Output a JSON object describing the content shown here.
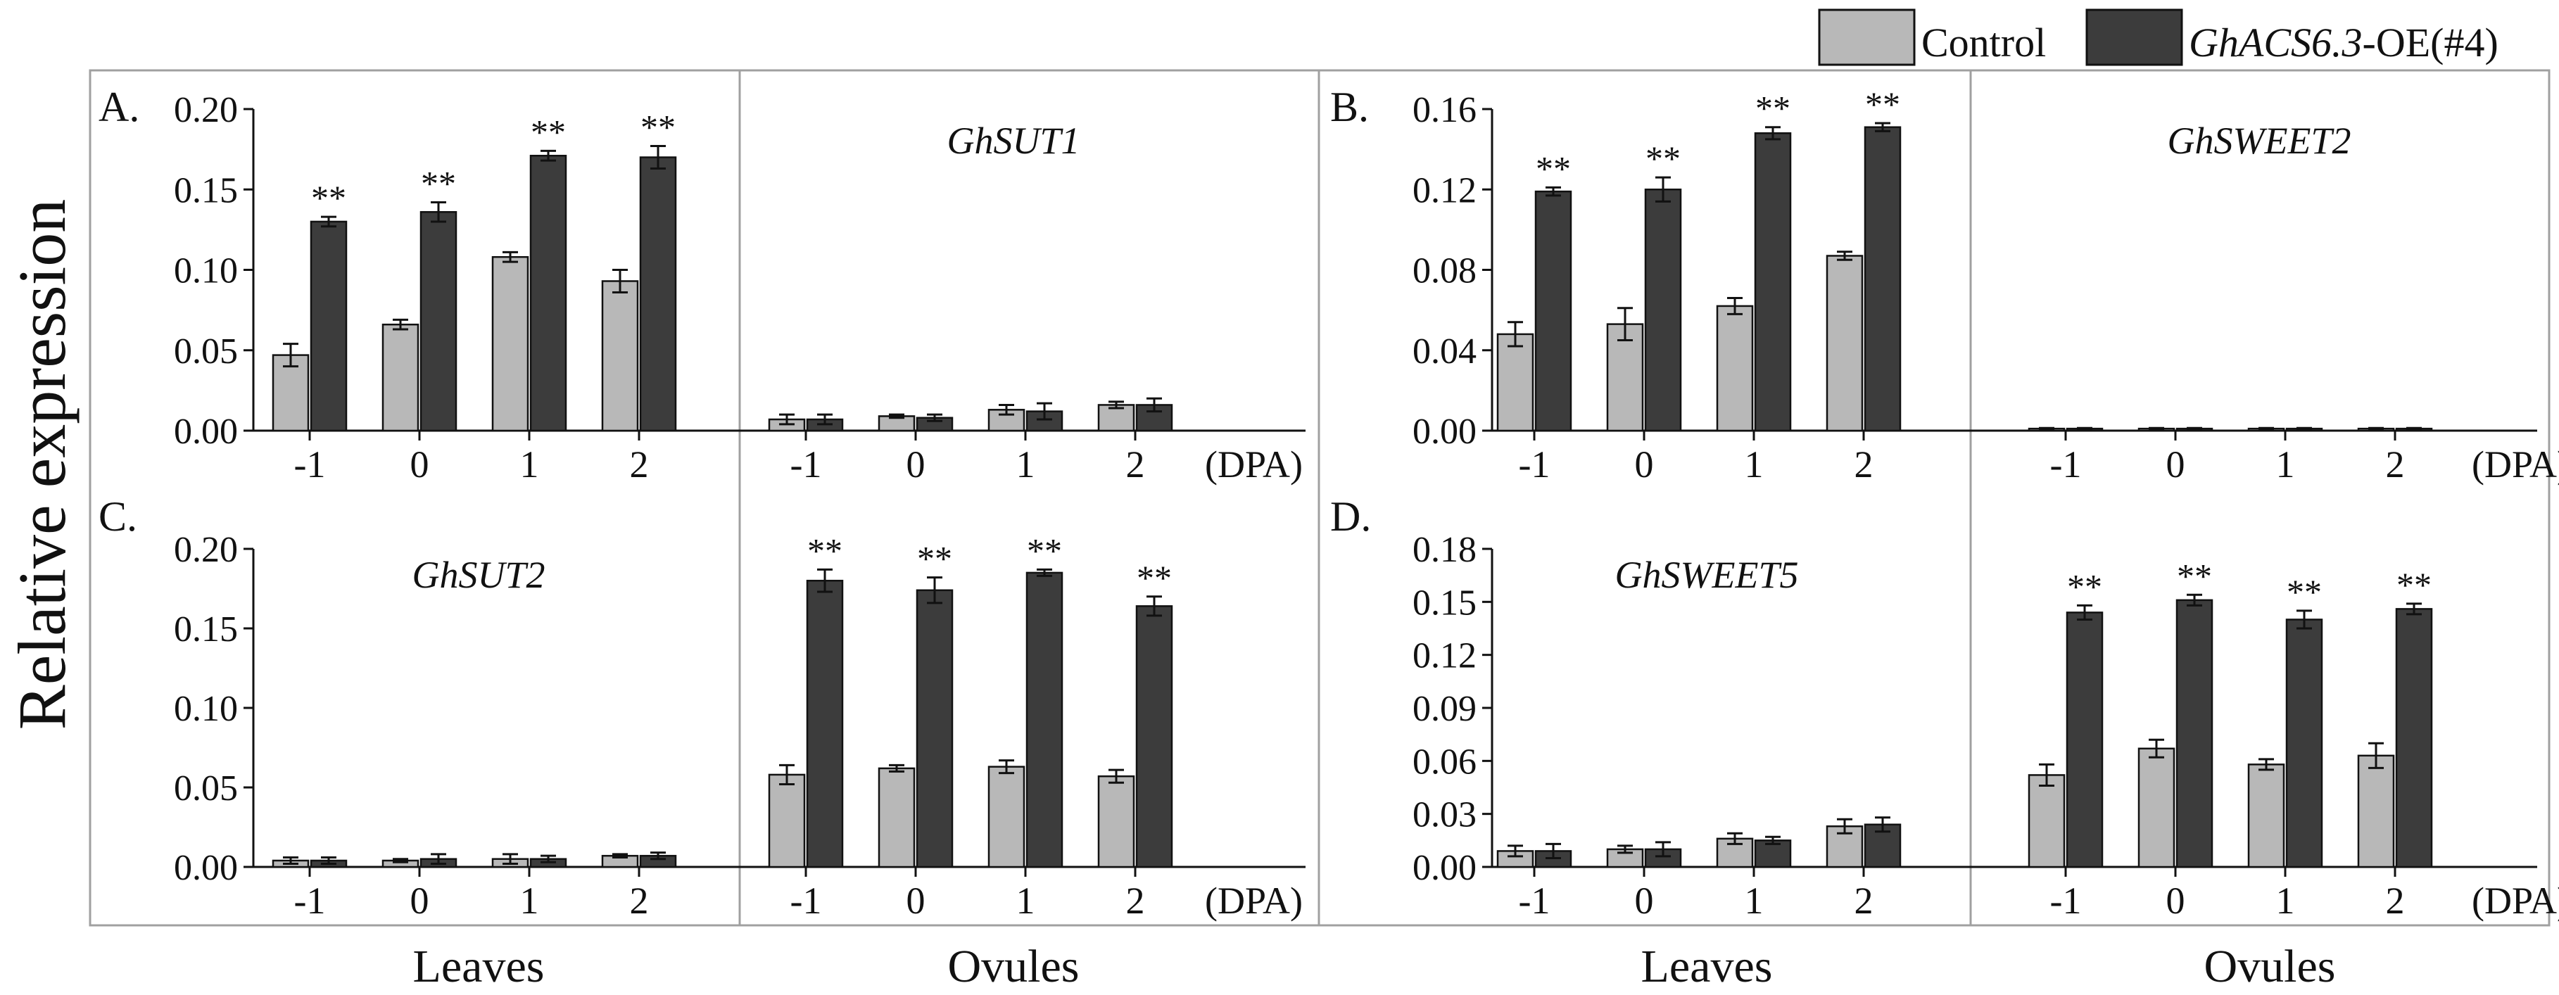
{
  "figure": {
    "ylabel": "Relative expression",
    "x_unit": "(DPA)",
    "tissue_labels": [
      "Leaves",
      "Ovules"
    ],
    "significance_marker": "**"
  },
  "legend": {
    "items": [
      {
        "label": "Control",
        "italic_part": "",
        "color": "#b8b8b8"
      },
      {
        "label": "-OE(#4)",
        "italic_part": "GhACS6.3",
        "color": "#3c3c3c"
      }
    ]
  },
  "colors": {
    "control": "#b8b8b8",
    "oe": "#3c3c3c",
    "axis": "#111111",
    "frame": "#a0a0a0"
  },
  "chart_data": [
    {
      "panel": "A.",
      "type": "bar",
      "gene_leaves": "",
      "gene_ovules": "GhSUT1",
      "categories": [
        "-1",
        "0",
        "1",
        "2"
      ],
      "ylim": [
        0,
        0.2
      ],
      "yticks": [
        "0.20",
        "0.15",
        "0.10",
        "0.05",
        "0.00"
      ],
      "ytick_values": [
        0.2,
        0.15,
        0.1,
        0.05,
        0.0
      ],
      "leaves": {
        "control": [
          0.047,
          0.066,
          0.108,
          0.093
        ],
        "control_err": [
          0.007,
          0.003,
          0.003,
          0.007
        ],
        "oe": [
          0.13,
          0.136,
          0.171,
          0.17
        ],
        "oe_err": [
          0.003,
          0.006,
          0.003,
          0.007
        ],
        "sig": [
          true,
          true,
          true,
          true
        ]
      },
      "ovules": {
        "control": [
          0.007,
          0.009,
          0.013,
          0.016
        ],
        "control_err": [
          0.003,
          0.001,
          0.003,
          0.002
        ],
        "oe": [
          0.007,
          0.008,
          0.012,
          0.016
        ],
        "oe_err": [
          0.003,
          0.002,
          0.005,
          0.004
        ],
        "sig": [
          false,
          false,
          false,
          false
        ]
      }
    },
    {
      "panel": "B.",
      "type": "bar",
      "gene_leaves": "",
      "gene_ovules": "GhSWEET2",
      "categories": [
        "-1",
        "0",
        "1",
        "2"
      ],
      "ylim": [
        0,
        0.16
      ],
      "yticks": [
        "0.16",
        "0.12",
        "0.08",
        "0.04",
        "0.00"
      ],
      "ytick_values": [
        0.16,
        0.12,
        0.08,
        0.04,
        0.0
      ],
      "leaves": {
        "control": [
          0.048,
          0.053,
          0.062,
          0.087
        ],
        "control_err": [
          0.006,
          0.008,
          0.004,
          0.002
        ],
        "oe": [
          0.119,
          0.12,
          0.148,
          0.151
        ],
        "oe_err": [
          0.002,
          0.006,
          0.003,
          0.002
        ],
        "sig": [
          true,
          true,
          true,
          true
        ]
      },
      "ovules": {
        "control": [
          0.001,
          0.001,
          0.001,
          0.001
        ],
        "control_err": [
          0.0003,
          0.0003,
          0.0003,
          0.0003
        ],
        "oe": [
          0.001,
          0.001,
          0.001,
          0.001
        ],
        "oe_err": [
          0.0003,
          0.0003,
          0.0003,
          0.0003
        ],
        "sig": [
          false,
          false,
          false,
          false
        ]
      }
    },
    {
      "panel": "C.",
      "type": "bar",
      "gene_leaves": "GhSUT2",
      "gene_ovules": "",
      "categories": [
        "-1",
        "0",
        "1",
        "2"
      ],
      "ylim": [
        0,
        0.2
      ],
      "yticks": [
        "0.20",
        "0.15",
        "0.10",
        "0.05",
        "0.00"
      ],
      "ytick_values": [
        0.2,
        0.15,
        0.1,
        0.05,
        0.0
      ],
      "leaves": {
        "control": [
          0.004,
          0.004,
          0.005,
          0.007
        ],
        "control_err": [
          0.002,
          0.001,
          0.003,
          0.001
        ],
        "oe": [
          0.004,
          0.005,
          0.005,
          0.007
        ],
        "oe_err": [
          0.002,
          0.003,
          0.002,
          0.002
        ],
        "sig": [
          false,
          false,
          false,
          false
        ]
      },
      "ovules": {
        "control": [
          0.058,
          0.062,
          0.063,
          0.057
        ],
        "control_err": [
          0.006,
          0.002,
          0.004,
          0.004
        ],
        "oe": [
          0.18,
          0.174,
          0.185,
          0.164
        ],
        "oe_err": [
          0.007,
          0.008,
          0.002,
          0.006
        ],
        "sig": [
          true,
          true,
          true,
          true
        ]
      }
    },
    {
      "panel": "D.",
      "type": "bar",
      "gene_leaves": "GhSWEET5",
      "gene_ovules": "",
      "categories": [
        "-1",
        "0",
        "1",
        "2"
      ],
      "ylim": [
        0,
        0.18
      ],
      "yticks": [
        "0.18",
        "0.15",
        "0.12",
        "0.09",
        "0.06",
        "0.03",
        "0.00"
      ],
      "ytick_values": [
        0.18,
        0.15,
        0.12,
        0.09,
        0.06,
        0.03,
        0.0
      ],
      "leaves": {
        "control": [
          0.009,
          0.01,
          0.016,
          0.023
        ],
        "control_err": [
          0.003,
          0.002,
          0.003,
          0.004
        ],
        "oe": [
          0.009,
          0.01,
          0.015,
          0.024
        ],
        "oe_err": [
          0.004,
          0.004,
          0.002,
          0.004
        ],
        "sig": [
          false,
          false,
          false,
          false
        ]
      },
      "ovules": {
        "control": [
          0.052,
          0.067,
          0.058,
          0.063
        ],
        "control_err": [
          0.006,
          0.005,
          0.003,
          0.007
        ],
        "oe": [
          0.144,
          0.151,
          0.14,
          0.146
        ],
        "oe_err": [
          0.004,
          0.003,
          0.005,
          0.003
        ],
        "sig": [
          true,
          true,
          true,
          true
        ]
      }
    }
  ]
}
